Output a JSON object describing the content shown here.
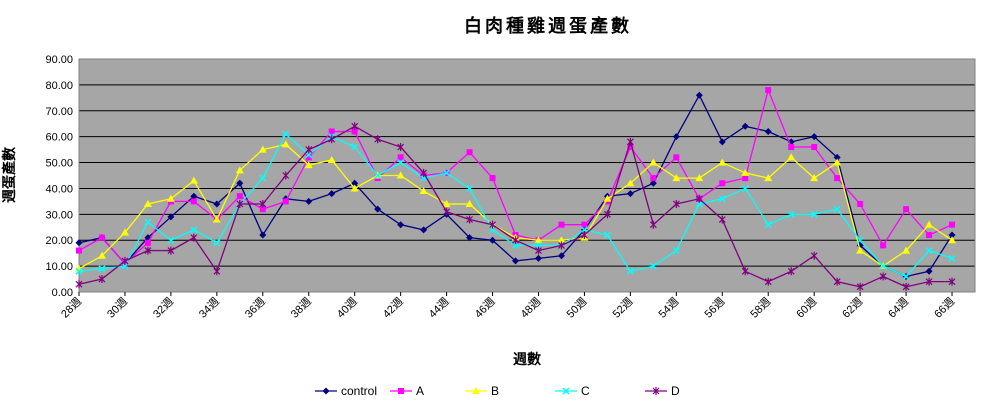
{
  "chart_data": {
    "type": "line",
    "title": "白肉種雞週蛋產數",
    "xlabel": "週數",
    "ylabel": "週蛋產數",
    "ylim": [
      0,
      90
    ],
    "yticks": [
      "0.00",
      "10.00",
      "20.00",
      "30.00",
      "40.00",
      "50.00",
      "60.00",
      "70.00",
      "80.00",
      "90.00"
    ],
    "grid": true,
    "legend_position": "bottom",
    "plot_background": "#a6a6a6",
    "x": [
      28,
      29,
      30,
      31,
      32,
      33,
      34,
      35,
      36,
      37,
      38,
      39,
      40,
      41,
      42,
      43,
      44,
      45,
      46,
      47,
      48,
      49,
      50,
      51,
      52,
      53,
      54,
      55,
      56,
      57,
      58,
      59,
      60,
      61,
      62,
      63,
      64,
      65,
      66,
      67
    ],
    "xtick_labels": [
      "28週",
      "30週",
      "32週",
      "34週",
      "36週",
      "38週",
      "40週",
      "42週",
      "44週",
      "46週",
      "48週",
      "50週",
      "52週",
      "54週",
      "56週",
      "58週",
      "60週",
      "62週",
      "64週",
      "66週"
    ],
    "series": [
      {
        "name": "control",
        "color": "#000080",
        "marker": "diamond",
        "values": [
          19,
          21,
          11,
          21,
          29,
          37,
          34,
          42,
          22,
          36,
          35,
          38,
          42,
          32,
          26,
          24,
          30,
          21,
          20,
          12,
          13,
          14,
          24,
          37,
          38,
          42,
          60,
          76,
          58,
          64,
          62,
          58,
          60,
          52,
          18,
          10,
          6,
          8,
          22,
          null
        ]
      },
      {
        "name": "A",
        "color": "#ff00ff",
        "marker": "square",
        "values": [
          16,
          21,
          11,
          19,
          35,
          35,
          28,
          37,
          32,
          35,
          52,
          62,
          62,
          44,
          52,
          45,
          46,
          54,
          44,
          22,
          20,
          26,
          26,
          35,
          56,
          44,
          52,
          36,
          42,
          44,
          78,
          56,
          56,
          44,
          34,
          18,
          32,
          22,
          26,
          null
        ]
      },
      {
        "name": "B",
        "color": "#ffff00",
        "marker": "triangle",
        "values": [
          9,
          14,
          23,
          34,
          36,
          43,
          28,
          47,
          55,
          57,
          49,
          51,
          40,
          45,
          45,
          39,
          34,
          34,
          26,
          21,
          20,
          20,
          21,
          36,
          42,
          50,
          44,
          44,
          50,
          46,
          44,
          52,
          44,
          50,
          16,
          10,
          16,
          26,
          20,
          null
        ]
      },
      {
        "name": "C",
        "color": "#00ffff",
        "marker": "x",
        "values": [
          8,
          9,
          10,
          27,
          20,
          24,
          19,
          34,
          44,
          61,
          53,
          60,
          56,
          45,
          50,
          44,
          46,
          40,
          24,
          18,
          18,
          18,
          24,
          22,
          8,
          10,
          16,
          34,
          36,
          40,
          26,
          30,
          30,
          32,
          20,
          10,
          6,
          16,
          13,
          null
        ]
      },
      {
        "name": "D",
        "color": "#800080",
        "marker": "star",
        "values": [
          3,
          5,
          12,
          16,
          16,
          21,
          8,
          34,
          34,
          45,
          55,
          59,
          64,
          59,
          56,
          46,
          31,
          28,
          26,
          20,
          16,
          18,
          22,
          30,
          58,
          26,
          34,
          36,
          28,
          8,
          4,
          8,
          14,
          4,
          2,
          6,
          2,
          4,
          4,
          null
        ]
      }
    ]
  }
}
